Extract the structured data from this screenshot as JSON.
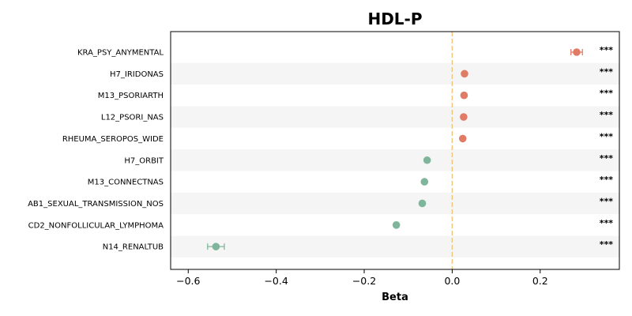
{
  "chart_data": {
    "type": "forest",
    "title": "HDL-P",
    "xlabel": "Beta",
    "xlim": [
      -0.64,
      0.38
    ],
    "xticks": [
      -0.6,
      -0.4,
      -0.2,
      0.0,
      0.2
    ],
    "xtick_labels": [
      "−0.6",
      "−0.4",
      "−0.2",
      "0.0",
      "0.2"
    ],
    "reference_line": 0.0,
    "reference_color": "#f2c57c",
    "positive_color": "#e07b66",
    "negative_color": "#7fb69b",
    "band_color": "#f5f5f5",
    "grid": false,
    "rows": [
      {
        "label": "KRA_PSY_ANYMENTAL",
        "beta": 0.283,
        "ci": [
          0.27,
          0.296
        ],
        "sig": "***"
      },
      {
        "label": "H7_IRIDONAS",
        "beta": 0.028,
        "ci": [
          0.025,
          0.031
        ],
        "sig": "***"
      },
      {
        "label": "M13_PSORIARTH",
        "beta": 0.027,
        "ci": [
          0.024,
          0.03
        ],
        "sig": "***"
      },
      {
        "label": "L12_PSORI_NAS",
        "beta": 0.026,
        "ci": [
          0.023,
          0.029
        ],
        "sig": "***"
      },
      {
        "label": "RHEUMA_SEROPOS_WIDE",
        "beta": 0.024,
        "ci": [
          0.021,
          0.027
        ],
        "sig": "***"
      },
      {
        "label": "H7_ORBIT",
        "beta": -0.057,
        "ci": [
          -0.06,
          -0.054
        ],
        "sig": "***"
      },
      {
        "label": "M13_CONNECTNAS",
        "beta": -0.063,
        "ci": [
          -0.066,
          -0.06
        ],
        "sig": "***"
      },
      {
        "label": "AB1_SEXUAL_TRANSMISSION_NOS",
        "beta": -0.068,
        "ci": [
          -0.071,
          -0.065
        ],
        "sig": "***"
      },
      {
        "label": "CD2_NONFOLLICULAR_LYMPHOMA",
        "beta": -0.127,
        "ci": [
          -0.131,
          -0.123
        ],
        "sig": "***"
      },
      {
        "label": "N14_RENALTUB",
        "beta": -0.537,
        "ci": [
          -0.556,
          -0.518
        ],
        "sig": "***"
      }
    ]
  }
}
